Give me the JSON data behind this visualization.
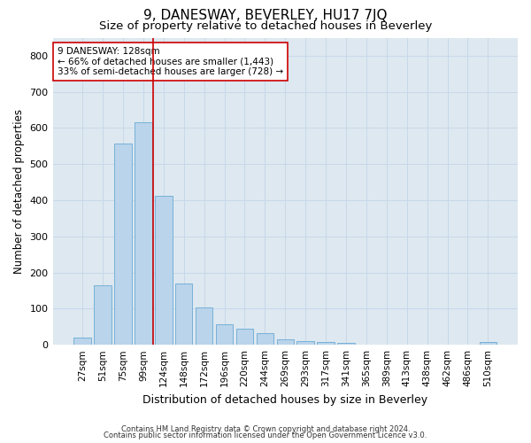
{
  "title": "9, DANESWAY, BEVERLEY, HU17 7JQ",
  "subtitle": "Size of property relative to detached houses in Beverley",
  "xlabel": "Distribution of detached houses by size in Beverley",
  "ylabel": "Number of detached properties",
  "footnote1": "Contains HM Land Registry data © Crown copyright and database right 2024.",
  "footnote2": "Contains public sector information licensed under the Open Government Licence v3.0.",
  "bar_labels": [
    "27sqm",
    "51sqm",
    "75sqm",
    "99sqm",
    "124sqm",
    "148sqm",
    "172sqm",
    "196sqm",
    "220sqm",
    "244sqm",
    "269sqm",
    "293sqm",
    "317sqm",
    "341sqm",
    "365sqm",
    "389sqm",
    "413sqm",
    "438sqm",
    "462sqm",
    "486sqm",
    "510sqm"
  ],
  "bar_values": [
    20,
    165,
    558,
    615,
    413,
    170,
    103,
    57,
    44,
    33,
    15,
    10,
    8,
    5,
    0,
    0,
    0,
    0,
    0,
    0,
    8
  ],
  "bar_color": "#bad4eb",
  "bar_edge_color": "#6aaad4",
  "vline_color": "#cc0000",
  "vline_position": 3.5,
  "annotation_text": "9 DANESWAY: 128sqm\n← 66% of detached houses are smaller (1,443)\n33% of semi-detached houses are larger (728) →",
  "annotation_box_color": "white",
  "annotation_box_edge": "#cc0000",
  "ylim": [
    0,
    850
  ],
  "yticks": [
    0,
    100,
    200,
    300,
    400,
    500,
    600,
    700,
    800
  ],
  "grid_color": "#c8d8ea",
  "bg_color": "#dde8f0",
  "title_fontsize": 11,
  "subtitle_fontsize": 9.5,
  "xlabel_fontsize": 9,
  "ylabel_fontsize": 8.5,
  "tick_fontsize": 7.5,
  "annot_fontsize": 7.5,
  "footnote_fontsize": 6
}
